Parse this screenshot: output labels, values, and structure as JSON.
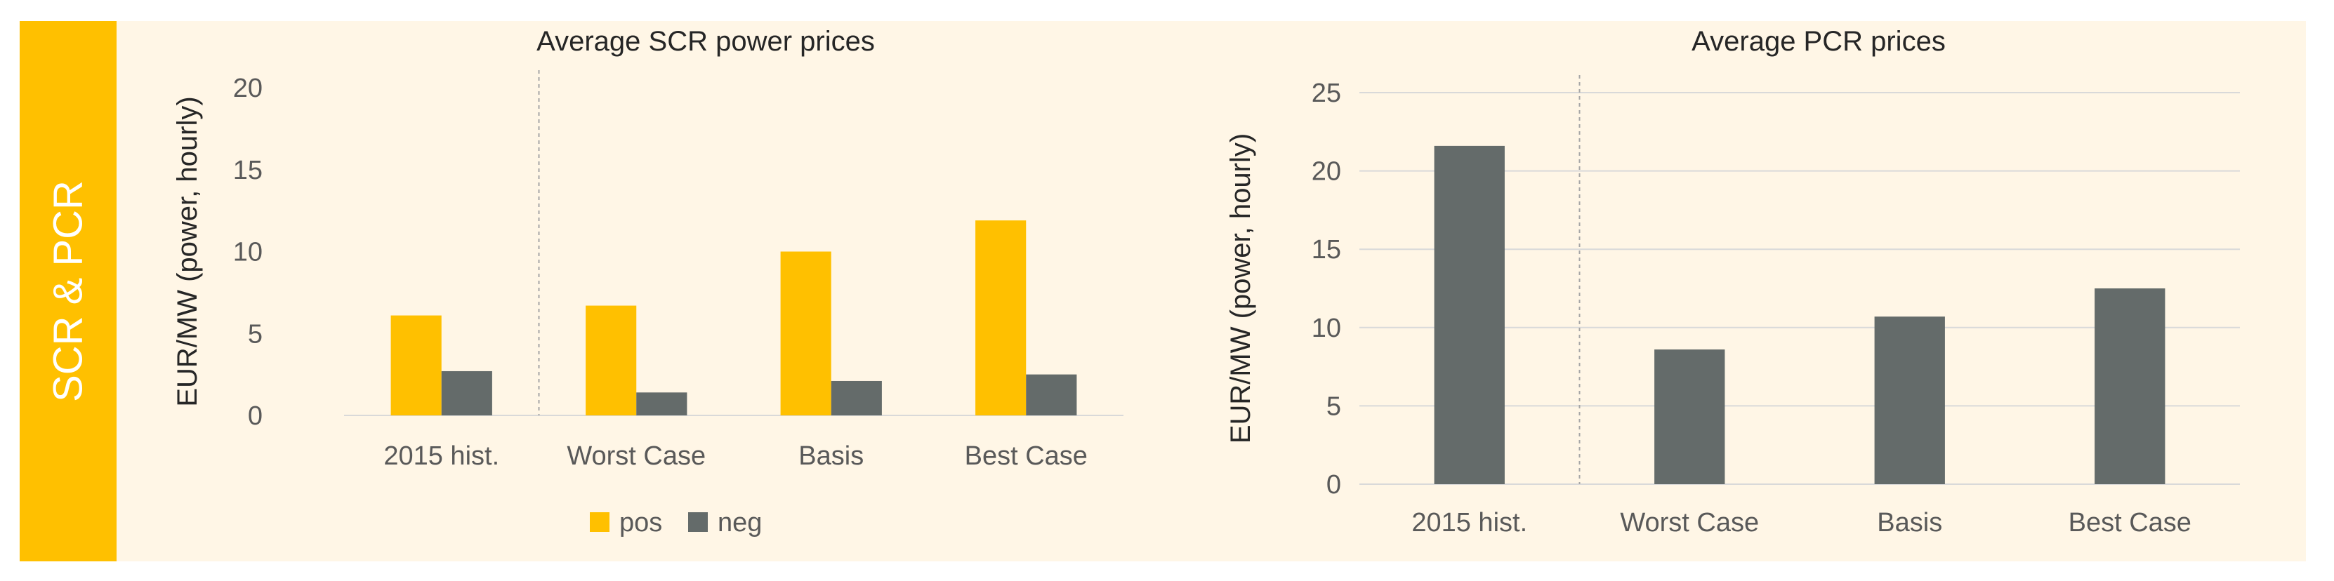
{
  "side_label": "SCR & PCR",
  "colors": {
    "side_tab": "#FFC000",
    "panel_bg": "#FFF6E6",
    "pos": "#FFC000",
    "neg": "#646B6A",
    "grid": "#D9D9D9",
    "divider": "#A6A6A6"
  },
  "chart_data": [
    {
      "type": "bar",
      "title": "Average SCR power prices",
      "ylabel": "EUR/MW (power, hourly)",
      "xlabel": "",
      "categories": [
        "2015 hist.",
        "Worst Case",
        "Basis",
        "Best Case"
      ],
      "series": [
        {
          "name": "pos",
          "values": [
            6.1,
            6.7,
            10.0,
            11.9
          ]
        },
        {
          "name": "neg",
          "values": [
            2.7,
            1.4,
            2.1,
            2.5
          ]
        }
      ],
      "ylim": [
        0,
        20
      ],
      "yticks": [
        0,
        5,
        10,
        15,
        20
      ],
      "grid": false,
      "divider_after_category": 0,
      "legend": "bottom"
    },
    {
      "type": "bar",
      "title": "Average PCR prices",
      "ylabel": "EUR/MW (power, hourly)",
      "xlabel": "",
      "categories": [
        "2015 hist.",
        "Worst Case",
        "Basis",
        "Best Case"
      ],
      "series": [
        {
          "values": [
            21.6,
            8.6,
            10.7,
            12.5
          ]
        }
      ],
      "ylim": [
        0,
        25
      ],
      "yticks": [
        0,
        5,
        10,
        15,
        20,
        25
      ],
      "grid": true,
      "divider_after_category": 0,
      "legend": "none"
    }
  ]
}
